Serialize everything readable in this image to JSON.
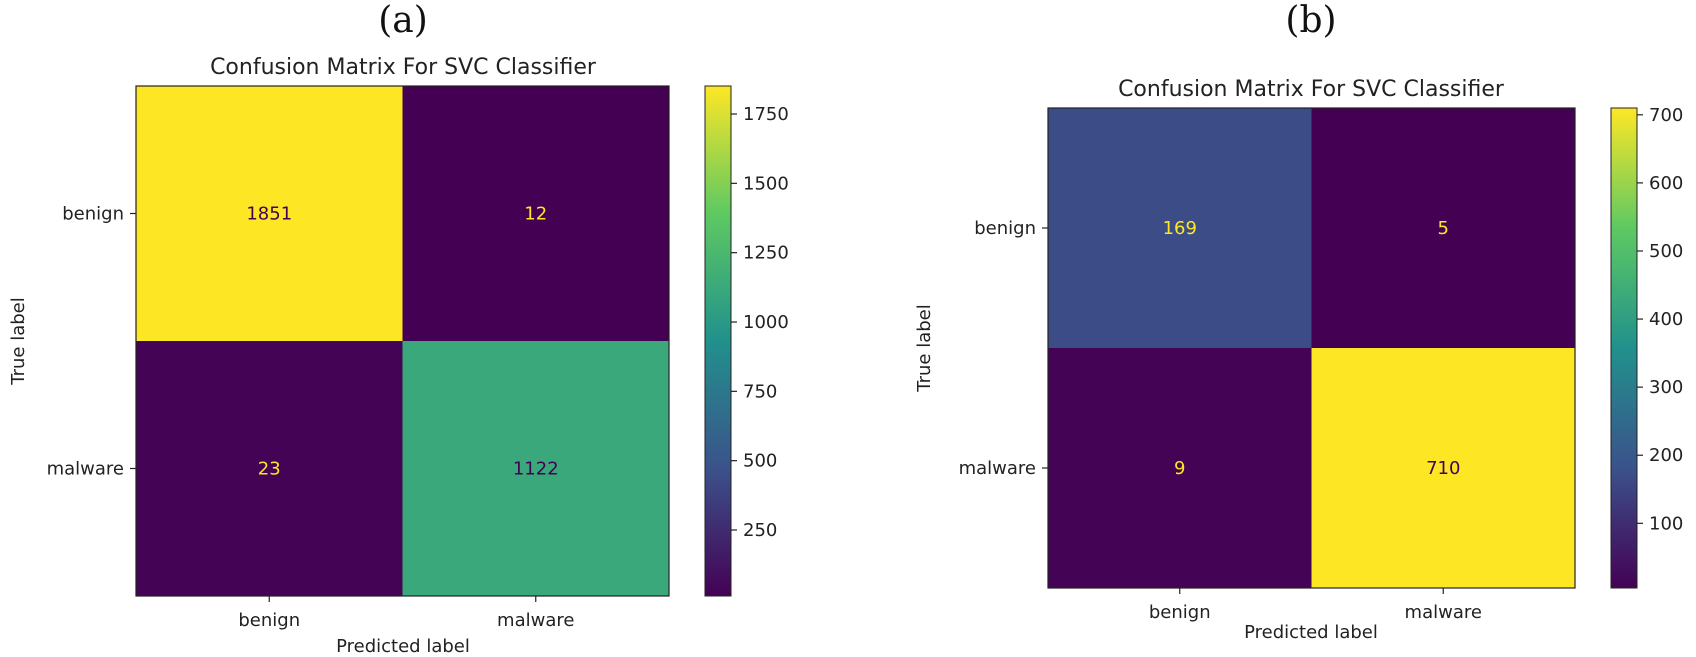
{
  "chart_data": [
    {
      "type": "heatmap",
      "panel_label": "(a)",
      "title": "Confusion Matrix For SVC Classifier",
      "xlabel": "Predicted label",
      "ylabel": "True label",
      "x_categories": [
        "benign",
        "malware"
      ],
      "y_categories": [
        "benign",
        "malware"
      ],
      "values": [
        [
          1851,
          12
        ],
        [
          23,
          1122
        ]
      ],
      "colormap": "viridis",
      "vmin": 12,
      "vmax": 1851,
      "colorbar_ticks": [
        250,
        500,
        750,
        1000,
        1250,
        1500,
        1750
      ]
    },
    {
      "type": "heatmap",
      "panel_label": "(b)",
      "title": "Confusion Matrix For SVC Classifier",
      "xlabel": "Predicted label",
      "ylabel": "True label",
      "x_categories": [
        "benign",
        "malware"
      ],
      "y_categories": [
        "benign",
        "malware"
      ],
      "values": [
        [
          169,
          5
        ],
        [
          9,
          710
        ]
      ],
      "colormap": "viridis",
      "vmin": 5,
      "vmax": 710,
      "colorbar_ticks": [
        100,
        200,
        300,
        400,
        500,
        600,
        700
      ]
    }
  ]
}
